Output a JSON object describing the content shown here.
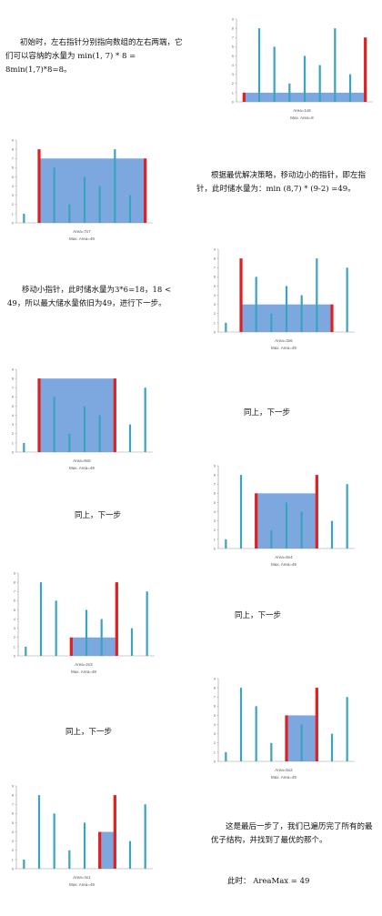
{
  "texts": {
    "t0": "初始时，左右指针分别指向数组的左右两端，它们可以容纳的水量为 min(1, 7) * 8 = 8min(1,7)*8=8。",
    "t1": "根据最优解决策略，移动边小的指针，即左指针，此时储水量为：min (8,7) * (9-2) =49。",
    "t2": "移动小指针，此时储水量为3*6=18，18 < 49，所以最大储水量依旧为49，进行下一步。",
    "t3": "同上，下一步",
    "t4": "同上，下一步",
    "t5": "同上，下一步",
    "t6": "同上，下一步",
    "t7": "这是最后一步了，我们已遍历完了所有的最优子结构，并找到了最优的那个。",
    "t8": "此时：  AreaMax = 49"
  },
  "chart_data": [
    {
      "type": "bar",
      "values": [
        1,
        8,
        6,
        2,
        5,
        4,
        8,
        3,
        7
      ],
      "ylim": [
        0,
        9
      ],
      "left": 0,
      "right": 8,
      "water": 1,
      "area_label": "Area=1x8",
      "max_label": "Max. Area=8"
    },
    {
      "type": "bar",
      "values": [
        1,
        8,
        6,
        2,
        5,
        4,
        8,
        3,
        7
      ],
      "ylim": [
        0,
        9
      ],
      "left": 1,
      "right": 8,
      "water": 7,
      "area_label": "Area=7x7",
      "max_label": "Max. Area=49"
    },
    {
      "type": "bar",
      "values": [
        1,
        8,
        6,
        2,
        5,
        4,
        8,
        3,
        7
      ],
      "ylim": [
        0,
        9
      ],
      "left": 1,
      "right": 7,
      "water": 3,
      "area_label": "Area=3x6",
      "max_label": "Max. Area=49"
    },
    {
      "type": "bar",
      "values": [
        1,
        8,
        6,
        2,
        5,
        4,
        8,
        3,
        7
      ],
      "ylim": [
        0,
        9
      ],
      "left": 1,
      "right": 6,
      "water": 8,
      "area_label": "Area=8x5",
      "max_label": "Max. Area=49"
    },
    {
      "type": "bar",
      "values": [
        1,
        8,
        6,
        2,
        5,
        4,
        8,
        3,
        7
      ],
      "ylim": [
        0,
        9
      ],
      "left": 2,
      "right": 6,
      "water": 6,
      "area_label": "Area=6x4",
      "max_label": "Max. Area=49"
    },
    {
      "type": "bar",
      "values": [
        1,
        8,
        6,
        2,
        5,
        4,
        8,
        3,
        7
      ],
      "ylim": [
        0,
        9
      ],
      "left": 3,
      "right": 6,
      "water": 2,
      "area_label": "Area=2x3",
      "max_label": "Max. Area=49"
    },
    {
      "type": "bar",
      "values": [
        1,
        8,
        6,
        2,
        5,
        4,
        8,
        3,
        7
      ],
      "ylim": [
        0,
        9
      ],
      "left": 4,
      "right": 6,
      "water": 5,
      "area_label": "Area=5x2",
      "max_label": "Max. Area=49"
    },
    {
      "type": "bar",
      "values": [
        1,
        8,
        6,
        2,
        5,
        4,
        8,
        3,
        7
      ],
      "ylim": [
        0,
        9
      ],
      "left": 5,
      "right": 6,
      "water": 4,
      "area_label": "Area=4x1",
      "max_label": "Max. Area=49"
    }
  ],
  "colors": {
    "bar": "#3aa3bd",
    "pointer": "#e02020",
    "water": "#6f9fdc",
    "axis": "#999999"
  }
}
